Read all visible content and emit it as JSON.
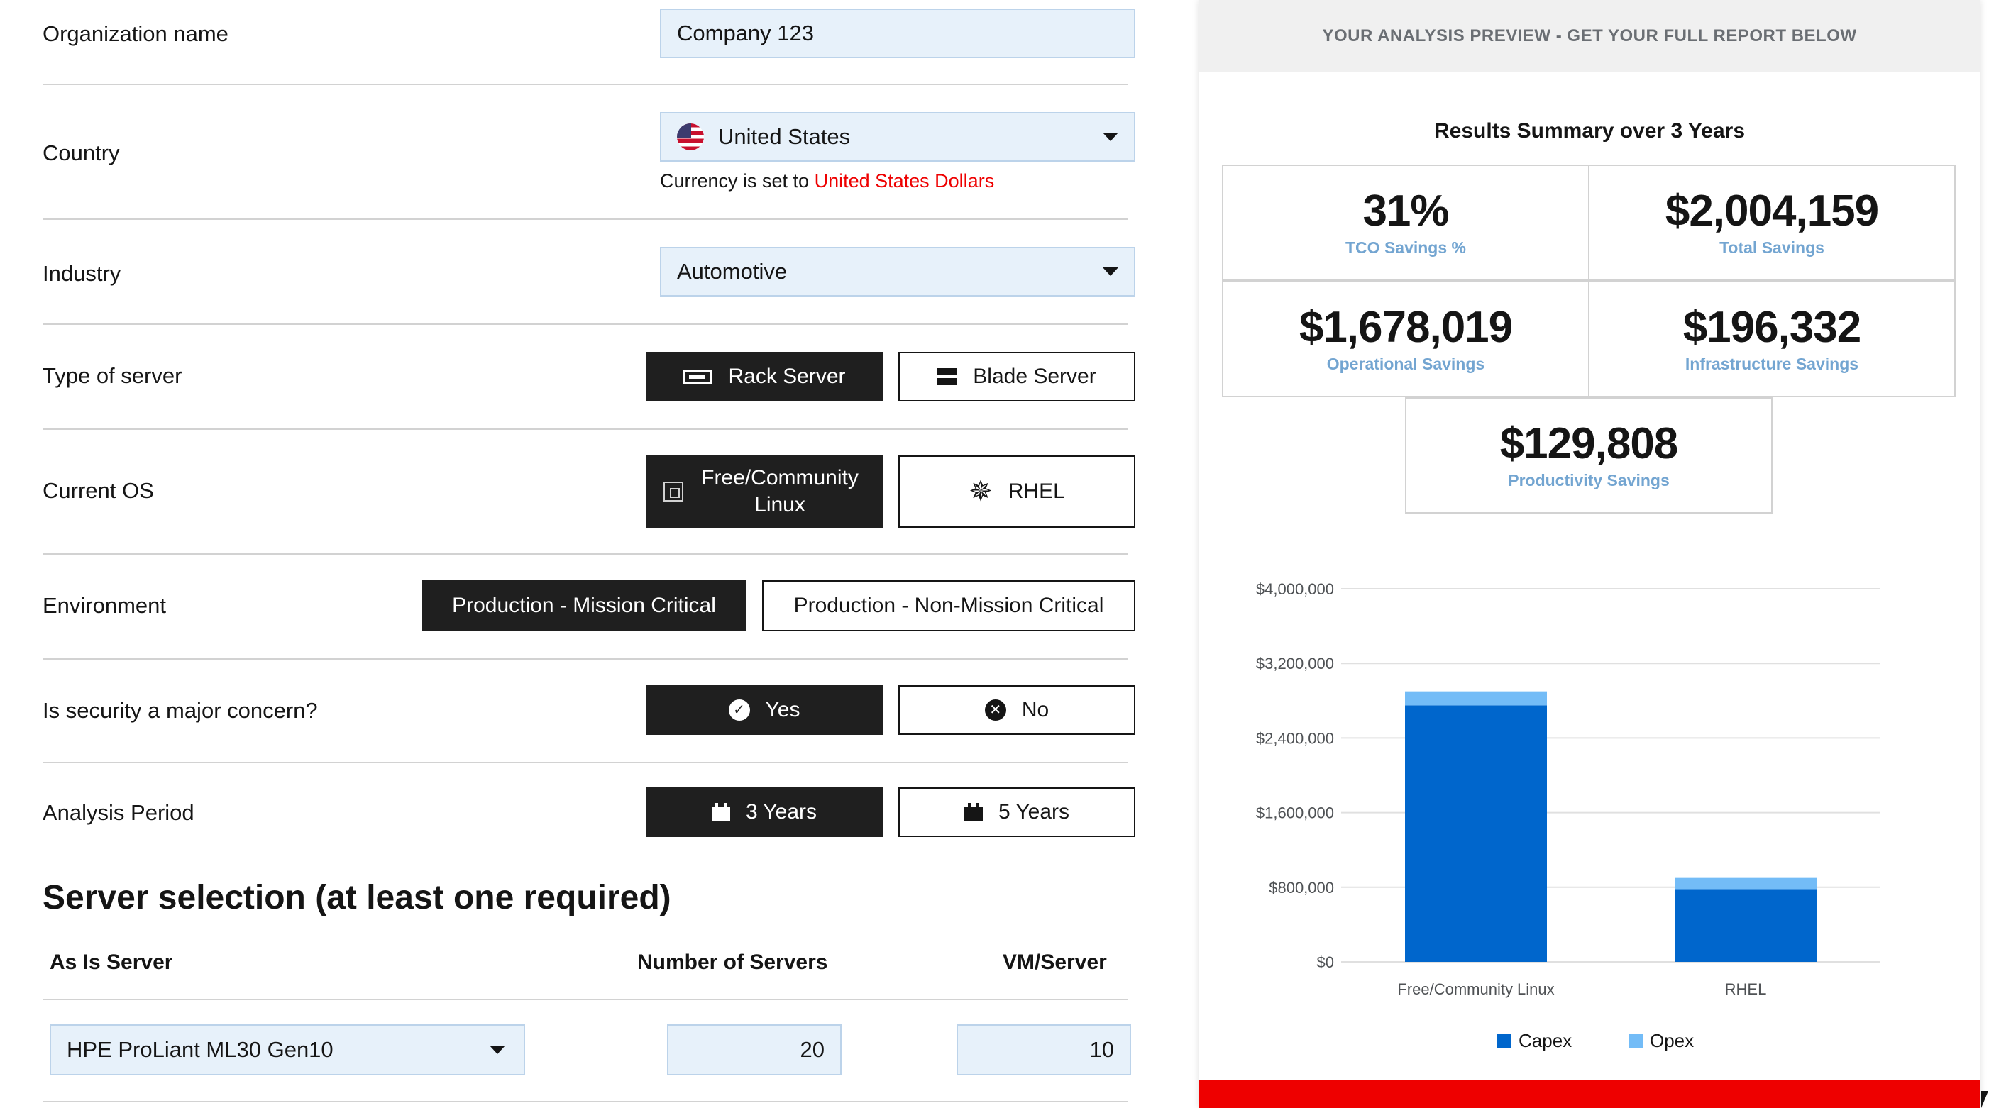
{
  "form": {
    "org_label": "Organization name",
    "org_value": "Company 123",
    "country_label": "Country",
    "country_value": "United States",
    "currency_prefix": "Currency is set to ",
    "currency_value": "United States Dollars",
    "industry_label": "Industry",
    "industry_value": "Automotive",
    "server_type_label": "Type of server",
    "server_type_options": [
      "Rack Server",
      "Blade Server"
    ],
    "os_label": "Current OS",
    "os_options": [
      "Free/Community Linux",
      "RHEL"
    ],
    "env_label": "Environment",
    "env_options": [
      "Production - Mission Critical",
      "Production - Non-Mission Critical"
    ],
    "security_label": "Is security a major concern?",
    "security_options": [
      "Yes",
      "No"
    ],
    "period_label": "Analysis Period",
    "period_options": [
      "3 Years",
      "5 Years"
    ],
    "selection_title": "Server selection (at least one required)",
    "col_as_is": "As Is Server",
    "col_num": "Number of Servers",
    "col_vm": "VM/Server",
    "server_model": "HPE ProLiant ML30 Gen10",
    "num_servers": "20",
    "vm_per_server": "10"
  },
  "panel": {
    "header": "YOUR ANALYSIS PREVIEW - GET YOUR FULL REPORT BELOW",
    "summary_title": "Results Summary over 3 Years",
    "metrics": [
      {
        "value": "31%",
        "label": "TCO Savings %"
      },
      {
        "value": "$2,004,159",
        "label": "Total Savings"
      },
      {
        "value": "$1,678,019",
        "label": "Operational Savings"
      },
      {
        "value": "$196,332",
        "label": "Infrastructure Savings"
      },
      {
        "value": "$129,808",
        "label": "Productivity Savings"
      }
    ]
  },
  "colors": {
    "selected_button": "#1f1f1f",
    "field_bg": "#e7f1fa",
    "currency_highlight": "#ee0000",
    "metric_caption": "#73a5d1",
    "capex": "#0066cc",
    "opex": "#73bcf7",
    "footer_bar": "#ee0000"
  },
  "chart_data": {
    "type": "bar",
    "stacked": true,
    "categories": [
      "Free/Community Linux",
      "RHEL"
    ],
    "series": [
      {
        "name": "Capex",
        "values": [
          2750000,
          780000
        ]
      },
      {
        "name": "Opex",
        "values": [
          150000,
          120000
        ]
      }
    ],
    "y_ticks": [
      "$0",
      "$800,000",
      "$1,600,000",
      "$2,400,000",
      "$3,200,000",
      "$4,000,000"
    ],
    "ylim": [
      0,
      4000000
    ],
    "legend_position": "bottom",
    "grid": true
  }
}
